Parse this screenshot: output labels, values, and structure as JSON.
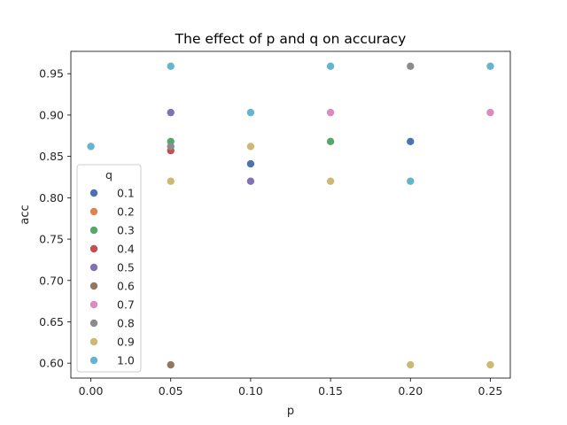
{
  "chart_data": {
    "type": "scatter",
    "title": "The effect of p and q on accuracy",
    "xlabel": "p",
    "ylabel": "acc",
    "xlim": [
      -0.0125,
      0.2625
    ],
    "ylim": [
      0.582,
      0.977
    ],
    "xticks": [
      "0.00",
      "0.05",
      "0.10",
      "0.15",
      "0.20",
      "0.25"
    ],
    "xtick_values": [
      0.0,
      0.05,
      0.1,
      0.15,
      0.2,
      0.25
    ],
    "yticks": [
      "0.60",
      "0.65",
      "0.70",
      "0.75",
      "0.80",
      "0.85",
      "0.90",
      "0.95"
    ],
    "ytick_values": [
      0.6,
      0.65,
      0.7,
      0.75,
      0.8,
      0.85,
      0.9,
      0.95
    ],
    "grid": false,
    "legend": {
      "title": "q",
      "placement": "lower-left",
      "entries": [
        "0.1",
        "0.2",
        "0.3",
        "0.4",
        "0.5",
        "0.6",
        "0.7",
        "0.8",
        "0.9",
        "1.0"
      ]
    },
    "series": [
      {
        "name": "0.1",
        "color": "#4c72b0",
        "points": [
          {
            "x": 0.1,
            "y": 0.841
          },
          {
            "x": 0.2,
            "y": 0.868
          }
        ]
      },
      {
        "name": "0.2",
        "color": "#dd8452",
        "points": []
      },
      {
        "name": "0.3",
        "color": "#55a868",
        "points": [
          {
            "x": 0.05,
            "y": 0.868
          },
          {
            "x": 0.15,
            "y": 0.868
          }
        ]
      },
      {
        "name": "0.4",
        "color": "#c44e52",
        "points": [
          {
            "x": 0.05,
            "y": 0.857
          }
        ]
      },
      {
        "name": "0.5",
        "color": "#8172b3",
        "points": [
          {
            "x": 0.05,
            "y": 0.903
          },
          {
            "x": 0.1,
            "y": 0.82
          }
        ]
      },
      {
        "name": "0.6",
        "color": "#937860",
        "points": [
          {
            "x": 0.05,
            "y": 0.598
          }
        ]
      },
      {
        "name": "0.7",
        "color": "#da8bc3",
        "points": [
          {
            "x": 0.15,
            "y": 0.903
          },
          {
            "x": 0.25,
            "y": 0.903
          }
        ]
      },
      {
        "name": "0.8",
        "color": "#8c8c8c",
        "points": [
          {
            "x": 0.05,
            "y": 0.862
          },
          {
            "x": 0.2,
            "y": 0.959
          }
        ]
      },
      {
        "name": "0.9",
        "color": "#ccb974",
        "points": [
          {
            "x": 0.05,
            "y": 0.82
          },
          {
            "x": 0.1,
            "y": 0.862
          },
          {
            "x": 0.15,
            "y": 0.82
          },
          {
            "x": 0.2,
            "y": 0.598
          },
          {
            "x": 0.25,
            "y": 0.598
          }
        ]
      },
      {
        "name": "1.0",
        "color": "#64b5cd",
        "points": [
          {
            "x": 0.0,
            "y": 0.862
          },
          {
            "x": 0.05,
            "y": 0.959
          },
          {
            "x": 0.1,
            "y": 0.903
          },
          {
            "x": 0.15,
            "y": 0.959
          },
          {
            "x": 0.2,
            "y": 0.82
          },
          {
            "x": 0.25,
            "y": 0.959
          }
        ]
      }
    ]
  }
}
